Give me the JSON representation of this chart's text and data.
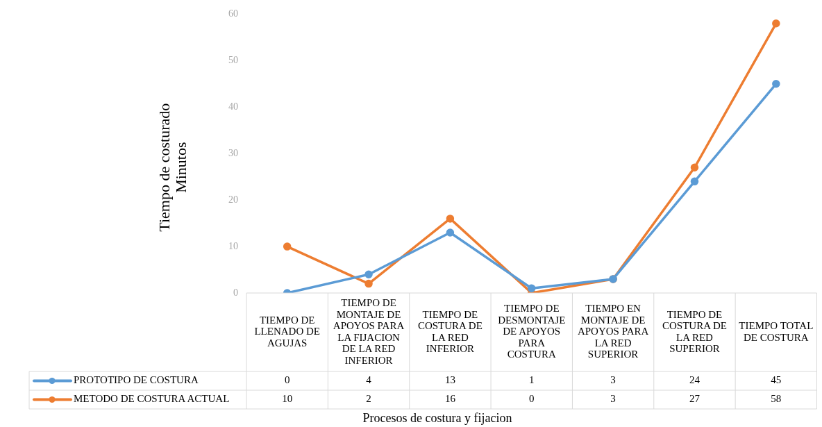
{
  "chart_data": {
    "type": "line",
    "xlabel": "Procesos de costura y fijacion",
    "ylabel": "Tiempo de costurado\nMinutos",
    "categories": [
      "TIEMPO DE LLENADO DE AGUJAS",
      "TIEMPO DE MONTAJE DE APOYOS PARA LA FIJACION DE LA RED INFERIOR",
      "TIEMPO DE COSTURA DE LA RED INFERIOR",
      "TIEMPO DE DESMONTAJE DE APOYOS PARA COSTURA",
      "TIEMPO EN MONTAJE DE APOYOS PARA LA RED SUPERIOR",
      "TIEMPO DE COSTURA DE LA RED SUPERIOR",
      "TIEMPO TOTAL DE COSTURA"
    ],
    "series": [
      {
        "name": "PROTOTIPO DE COSTURA",
        "color": "#5b9bd5",
        "values": [
          0,
          4,
          13,
          1,
          3,
          24,
          45
        ]
      },
      {
        "name": "METODO DE COSTURA ACTUAL",
        "color": "#ed7d31",
        "values": [
          10,
          2,
          16,
          0,
          3,
          27,
          58
        ]
      }
    ],
    "ylim": [
      0,
      60
    ],
    "yticks": [
      0,
      10,
      20,
      30,
      40,
      50,
      60
    ],
    "grid": false,
    "legend": "bottom",
    "marker": "circle",
    "line_style": "solid",
    "data_labels": true
  }
}
